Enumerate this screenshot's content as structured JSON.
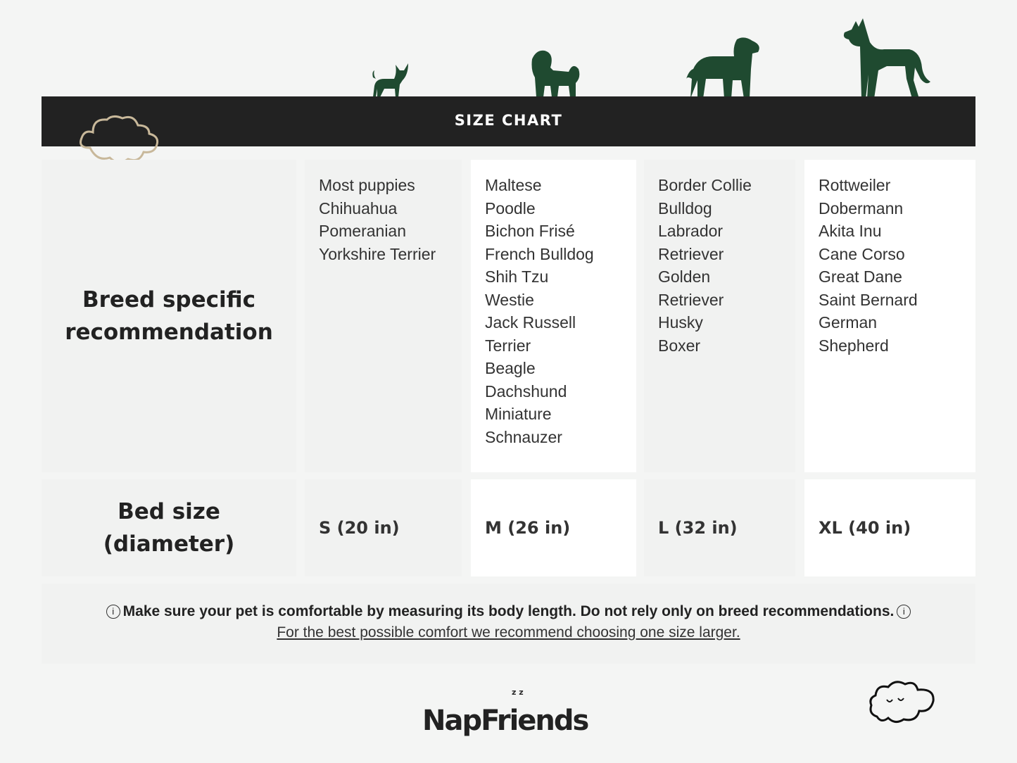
{
  "header": {
    "title": "SIZE CHART"
  },
  "rows": {
    "breed_label": "Breed specific recommendation",
    "bed_label": "Bed size (diameter)"
  },
  "columns": [
    {
      "breeds": [
        "Most puppies",
        "Chihuahua",
        "Pomeranian",
        "Yorkshire Terrier"
      ],
      "size": "S (20 in)"
    },
    {
      "breeds": [
        "Maltese",
        "Poodle",
        "Bichon Frisé",
        "French Bulldog",
        "Shih Tzu",
        "Westie",
        "Jack Russell",
        "Terrier",
        "Beagle",
        "Dachshund",
        "Miniature",
        "Schnauzer"
      ],
      "size": "M (26 in)"
    },
    {
      "breeds": [
        "Border Collie",
        "Bulldog",
        "Labrador",
        "Retriever",
        "Golden",
        "Retriever",
        "Husky",
        "Boxer"
      ],
      "size": "L (32 in)"
    },
    {
      "breeds": [
        "Rottweiler",
        "Dobermann",
        "Akita Inu",
        "Cane Corso",
        "Great Dane",
        "Saint Bernard",
        "German",
        "Shepherd"
      ],
      "size": "XL (40 in)"
    }
  ],
  "note": {
    "line1": "Make sure your pet is comfortable by measuring its body length. Do not rely only on breed recommendations.",
    "line2": " For the best possible comfort we recommend choosing one size larger.",
    "icon": "info-icon"
  },
  "logo": {
    "text": "NapFriends",
    "zz": "z z"
  },
  "colors": {
    "dog": "#1f4a30",
    "bar": "#222222",
    "cloud": "#c8b89a"
  }
}
